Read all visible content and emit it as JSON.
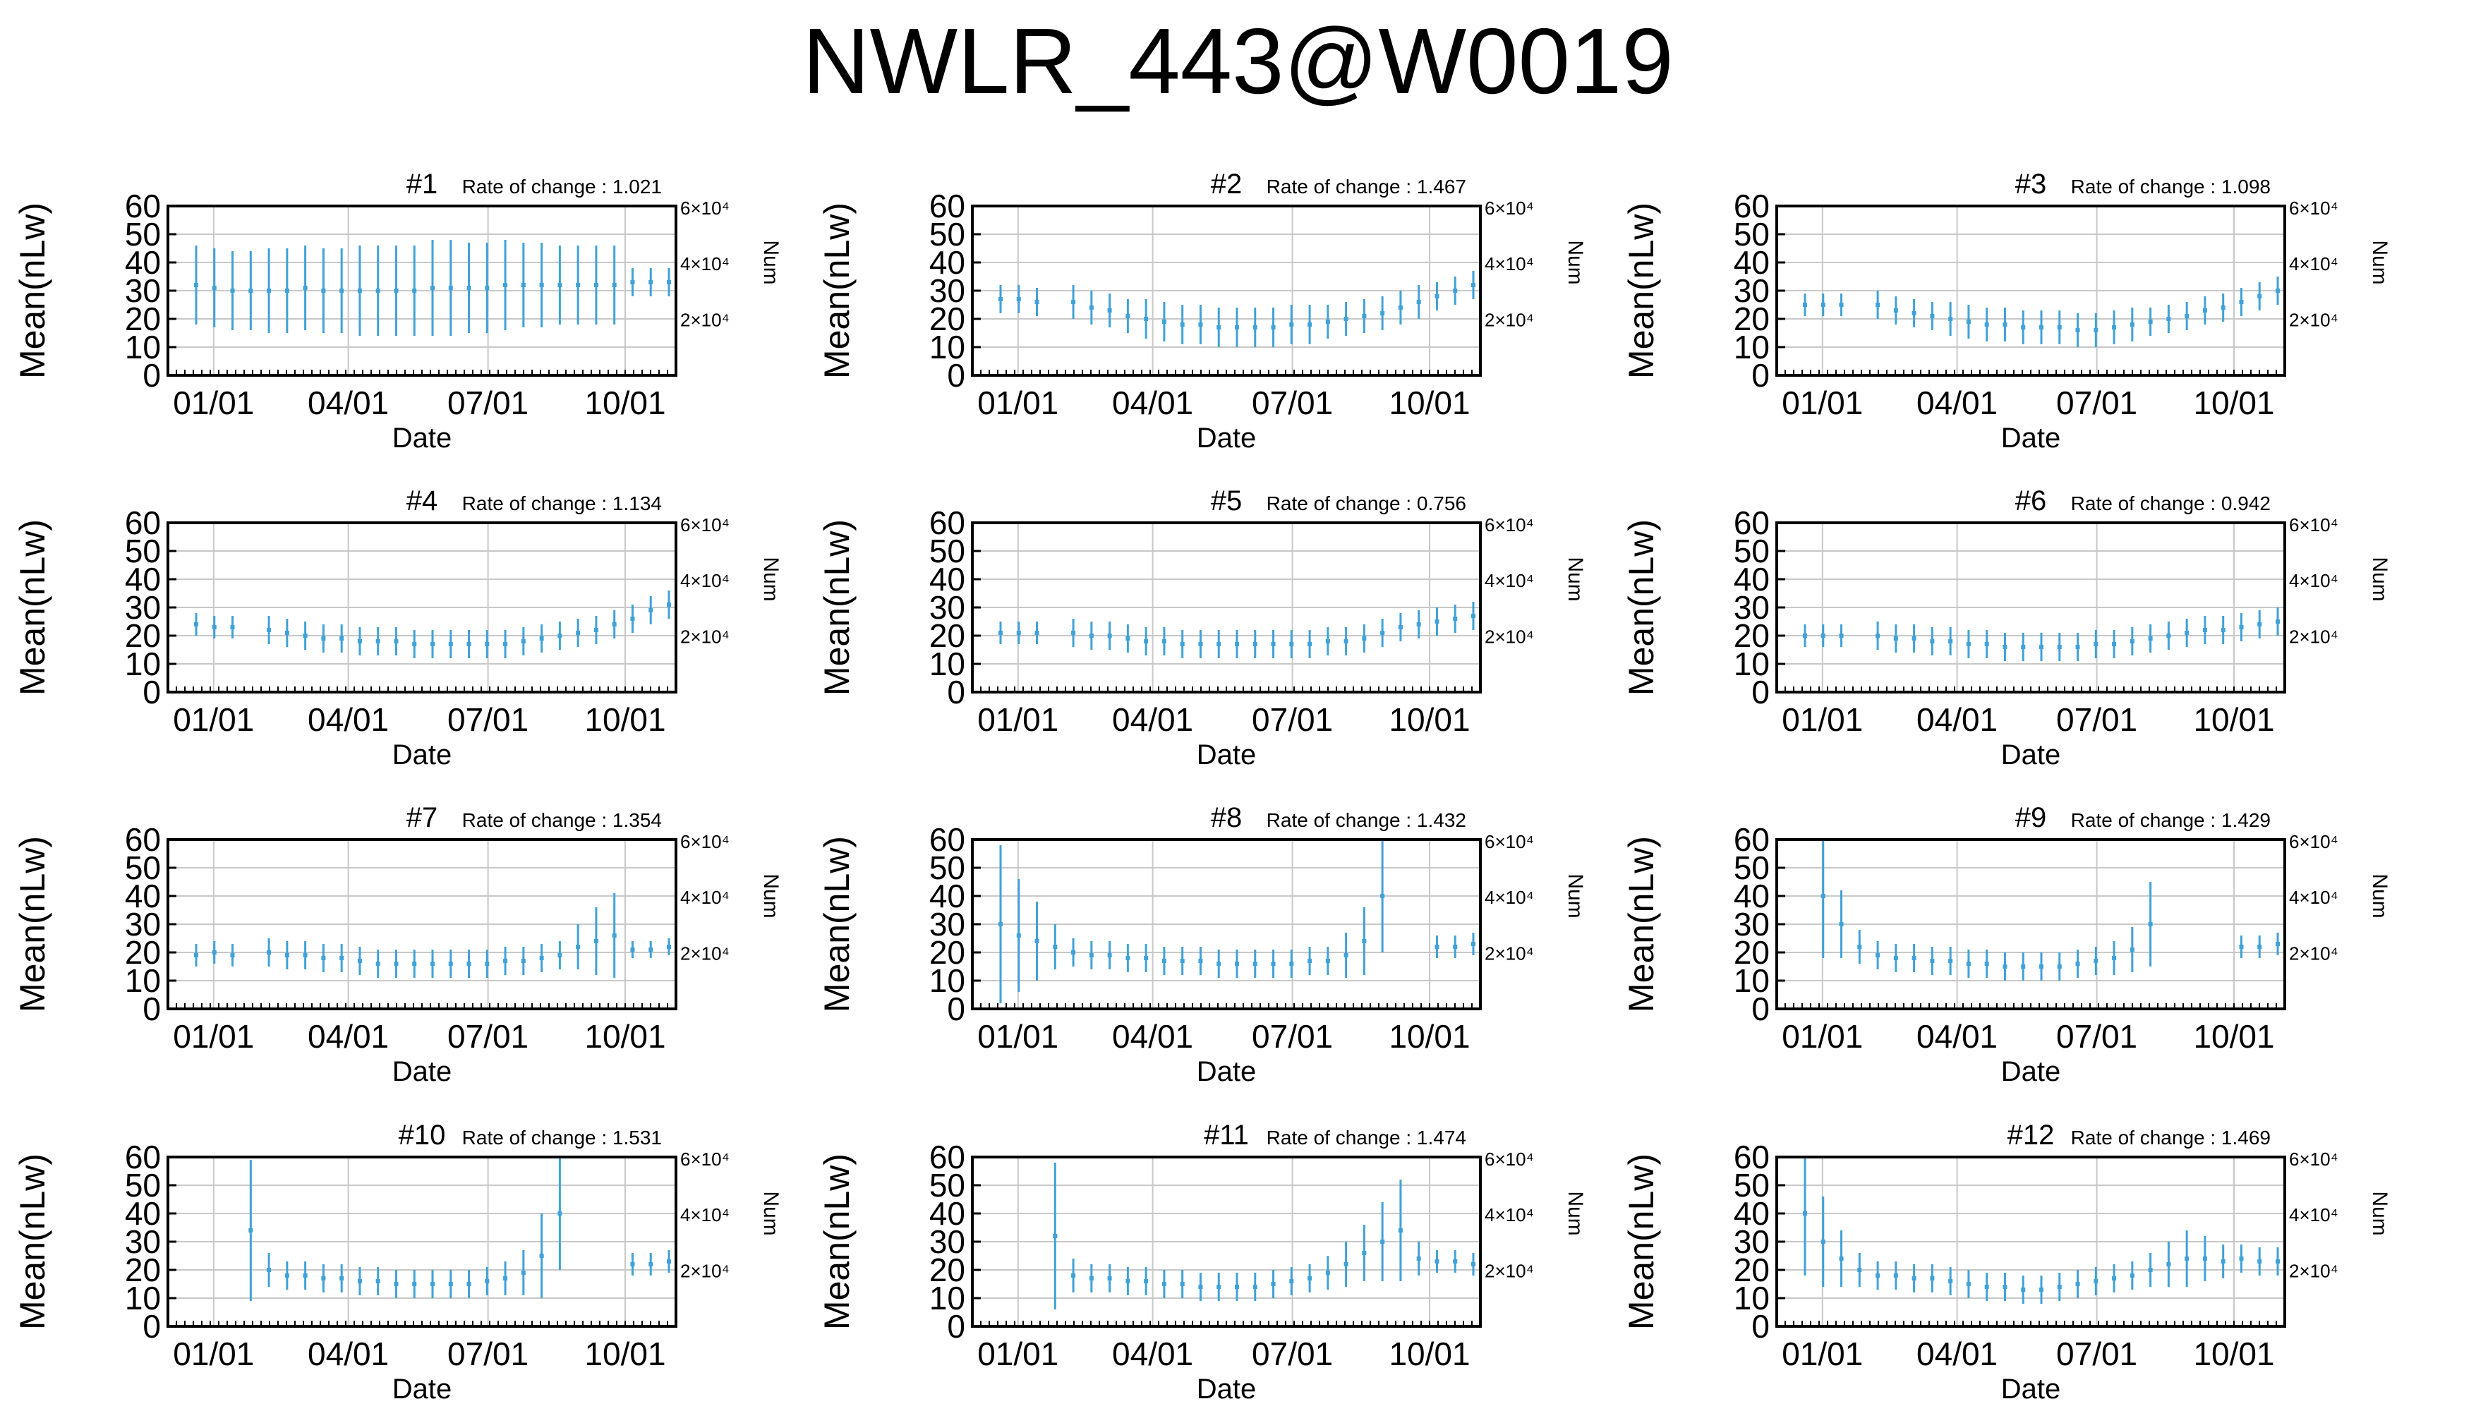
{
  "figure": {
    "title": "NWLR_443@W0019"
  },
  "chart_data": [
    {
      "type": "line",
      "title": "#1",
      "rate_of_change": "Rate of change : 1.021",
      "ylabel": "Mean(nLw)",
      "xlabel": "Date",
      "y2label": "Num",
      "ylim": [
        0,
        60
      ],
      "yticks": [
        0,
        10,
        20,
        30,
        40,
        50,
        60
      ],
      "xticks": [
        "01/01",
        "04/01",
        "07/01",
        "10/01"
      ],
      "y2ticks": [
        "2×10⁴",
        "4×10⁴",
        "6×10⁴"
      ],
      "grid": true,
      "series": [
        {
          "values": [
            32,
            31,
            30,
            30,
            30,
            30,
            31,
            30,
            30,
            30,
            30,
            30,
            30,
            31,
            31,
            31,
            31,
            32,
            32,
            32,
            32,
            32,
            32,
            32,
            33,
            33,
            33
          ],
          "errors": [
            14,
            14,
            14,
            14,
            15,
            15,
            15,
            15,
            15,
            16,
            16,
            16,
            16,
            17,
            17,
            16,
            16,
            16,
            15,
            15,
            14,
            14,
            14,
            14,
            5,
            5,
            5
          ]
        }
      ]
    },
    {
      "type": "line",
      "title": "#2",
      "rate_of_change": "Rate of change : 1.467",
      "ylabel": "Mean(nLw)",
      "xlabel": "Date",
      "y2label": "Num",
      "ylim": [
        0,
        60
      ],
      "yticks": [
        0,
        10,
        20,
        30,
        40,
        50,
        60
      ],
      "xticks": [
        "01/01",
        "04/01",
        "07/01",
        "10/01"
      ],
      "y2ticks": [
        "2×10⁴",
        "4×10⁴",
        "6×10⁴"
      ],
      "grid": true,
      "series": [
        {
          "values": [
            27,
            27,
            26,
            null,
            26,
            24,
            23,
            21,
            20,
            19,
            18,
            18,
            17,
            17,
            17,
            17,
            18,
            18,
            19,
            20,
            21,
            22,
            24,
            26,
            28,
            30,
            32
          ],
          "errors": [
            5,
            5,
            5,
            null,
            6,
            6,
            6,
            6,
            7,
            7,
            7,
            7,
            7,
            7,
            7,
            7,
            7,
            7,
            6,
            6,
            6,
            6,
            6,
            6,
            5,
            5,
            5
          ]
        }
      ]
    },
    {
      "type": "line",
      "title": "#3",
      "rate_of_change": "Rate of change : 1.098",
      "ylabel": "Mean(nLw)",
      "xlabel": "Date",
      "y2label": "Num",
      "ylim": [
        0,
        60
      ],
      "yticks": [
        0,
        10,
        20,
        30,
        40,
        50,
        60
      ],
      "xticks": [
        "01/01",
        "04/01",
        "07/01",
        "10/01"
      ],
      "y2ticks": [
        "2×10⁴",
        "4×10⁴",
        "6×10⁴"
      ],
      "grid": true,
      "series": [
        {
          "values": [
            25,
            25,
            25,
            null,
            25,
            23,
            22,
            21,
            20,
            19,
            18,
            18,
            17,
            17,
            17,
            16,
            16,
            17,
            18,
            19,
            20,
            21,
            23,
            24,
            26,
            28,
            30
          ],
          "errors": [
            4,
            4,
            4,
            null,
            5,
            5,
            5,
            5,
            6,
            6,
            6,
            6,
            6,
            6,
            6,
            6,
            6,
            6,
            6,
            5,
            5,
            5,
            5,
            5,
            5,
            5,
            5
          ]
        }
      ]
    },
    {
      "type": "line",
      "title": "#4",
      "rate_of_change": "Rate of change : 1.134",
      "ylabel": "Mean(nLw)",
      "xlabel": "Date",
      "y2label": "Num",
      "ylim": [
        0,
        60
      ],
      "yticks": [
        0,
        10,
        20,
        30,
        40,
        50,
        60
      ],
      "xticks": [
        "01/01",
        "04/01",
        "07/01",
        "10/01"
      ],
      "y2ticks": [
        "2×10⁴",
        "4×10⁴",
        "6×10⁴"
      ],
      "grid": true,
      "series": [
        {
          "values": [
            24,
            23,
            23,
            null,
            22,
            21,
            20,
            19,
            19,
            18,
            18,
            18,
            17,
            17,
            17,
            17,
            17,
            17,
            18,
            19,
            20,
            21,
            22,
            24,
            26,
            29,
            31
          ],
          "errors": [
            4,
            4,
            4,
            null,
            5,
            5,
            5,
            5,
            5,
            5,
            5,
            5,
            5,
            5,
            5,
            5,
            5,
            5,
            5,
            5,
            5,
            5,
            5,
            5,
            5,
            5,
            5
          ]
        }
      ]
    },
    {
      "type": "line",
      "title": "#5",
      "rate_of_change": "Rate of change : 0.756",
      "ylabel": "Mean(nLw)",
      "xlabel": "Date",
      "y2label": "Num",
      "ylim": [
        0,
        60
      ],
      "yticks": [
        0,
        10,
        20,
        30,
        40,
        50,
        60
      ],
      "xticks": [
        "01/01",
        "04/01",
        "07/01",
        "10/01"
      ],
      "y2ticks": [
        "2×10⁴",
        "4×10⁴",
        "6×10⁴"
      ],
      "grid": true,
      "series": [
        {
          "values": [
            21,
            21,
            21,
            null,
            21,
            20,
            20,
            19,
            18,
            18,
            17,
            17,
            17,
            17,
            17,
            17,
            17,
            17,
            18,
            18,
            19,
            21,
            23,
            24,
            25,
            26,
            27
          ],
          "errors": [
            4,
            4,
            4,
            null,
            5,
            5,
            5,
            5,
            5,
            5,
            5,
            5,
            5,
            5,
            5,
            5,
            5,
            5,
            5,
            5,
            5,
            5,
            5,
            5,
            5,
            5,
            5
          ]
        }
      ]
    },
    {
      "type": "line",
      "title": "#6",
      "rate_of_change": "Rate of change : 0.942",
      "ylabel": "Mean(nLw)",
      "xlabel": "Date",
      "y2label": "Num",
      "ylim": [
        0,
        60
      ],
      "yticks": [
        0,
        10,
        20,
        30,
        40,
        50,
        60
      ],
      "xticks": [
        "01/01",
        "04/01",
        "07/01",
        "10/01"
      ],
      "y2ticks": [
        "2×10⁴",
        "4×10⁴",
        "6×10⁴"
      ],
      "grid": true,
      "series": [
        {
          "values": [
            20,
            20,
            20,
            null,
            20,
            19,
            19,
            18,
            18,
            17,
            17,
            16,
            16,
            16,
            16,
            16,
            17,
            17,
            18,
            19,
            20,
            21,
            22,
            22,
            23,
            24,
            25
          ],
          "errors": [
            4,
            4,
            4,
            null,
            5,
            5,
            5,
            5,
            5,
            5,
            5,
            5,
            5,
            5,
            5,
            5,
            5,
            5,
            5,
            5,
            5,
            5,
            5,
            5,
            5,
            5,
            5
          ]
        }
      ]
    },
    {
      "type": "line",
      "title": "#7",
      "rate_of_change": "Rate of change : 1.354",
      "ylabel": "Mean(nLw)",
      "xlabel": "Date",
      "y2label": "Num",
      "ylim": [
        0,
        60
      ],
      "yticks": [
        0,
        10,
        20,
        30,
        40,
        50,
        60
      ],
      "xticks": [
        "01/01",
        "04/01",
        "07/01",
        "10/01"
      ],
      "y2ticks": [
        "2×10⁴",
        "4×10⁴",
        "6×10⁴"
      ],
      "grid": true,
      "series": [
        {
          "values": [
            19,
            20,
            19,
            null,
            20,
            19,
            19,
            18,
            18,
            17,
            16,
            16,
            16,
            16,
            16,
            16,
            16,
            17,
            17,
            18,
            19,
            22,
            24,
            26,
            21,
            21,
            22
          ],
          "errors": [
            4,
            4,
            4,
            null,
            5,
            5,
            5,
            5,
            5,
            5,
            5,
            5,
            5,
            5,
            5,
            5,
            5,
            5,
            5,
            5,
            5,
            8,
            12,
            15,
            3,
            3,
            3
          ]
        }
      ]
    },
    {
      "type": "line",
      "title": "#8",
      "rate_of_change": "Rate of change : 1.432",
      "ylabel": "Mean(nLw)",
      "xlabel": "Date",
      "y2label": "Num",
      "ylim": [
        0,
        60
      ],
      "yticks": [
        0,
        10,
        20,
        30,
        40,
        50,
        60
      ],
      "xticks": [
        "01/01",
        "04/01",
        "07/01",
        "10/01"
      ],
      "y2ticks": [
        "2×10⁴",
        "4×10⁴",
        "6×10⁴"
      ],
      "grid": true,
      "series": [
        {
          "values": [
            30,
            26,
            24,
            22,
            20,
            19,
            19,
            18,
            18,
            17,
            17,
            17,
            16,
            16,
            16,
            16,
            16,
            17,
            17,
            19,
            24,
            40,
            null,
            null,
            22,
            22,
            23
          ],
          "errors": [
            28,
            20,
            14,
            8,
            5,
            5,
            5,
            5,
            5,
            5,
            5,
            5,
            5,
            5,
            5,
            5,
            5,
            5,
            5,
            8,
            12,
            20,
            null,
            null,
            4,
            4,
            4
          ]
        }
      ]
    },
    {
      "type": "line",
      "title": "#9",
      "rate_of_change": "Rate of change : 1.429",
      "ylabel": "Mean(nLw)",
      "xlabel": "Date",
      "y2label": "Num",
      "ylim": [
        0,
        60
      ],
      "yticks": [
        0,
        10,
        20,
        30,
        40,
        50,
        60
      ],
      "xticks": [
        "01/01",
        "04/01",
        "07/01",
        "10/01"
      ],
      "y2ticks": [
        "2×10⁴",
        "4×10⁴",
        "6×10⁴"
      ],
      "grid": true,
      "series": [
        {
          "values": [
            null,
            40,
            30,
            22,
            19,
            18,
            18,
            17,
            17,
            16,
            16,
            15,
            15,
            15,
            15,
            16,
            17,
            18,
            21,
            30,
            null,
            null,
            null,
            null,
            22,
            22,
            23
          ],
          "errors": [
            null,
            22,
            12,
            6,
            5,
            5,
            5,
            5,
            5,
            5,
            5,
            5,
            5,
            5,
            5,
            5,
            5,
            6,
            8,
            15,
            null,
            null,
            null,
            null,
            4,
            4,
            4
          ]
        }
      ]
    },
    {
      "type": "line",
      "title": "#10",
      "rate_of_change": "Rate of change : 1.531",
      "ylabel": "Mean(nLw)",
      "xlabel": "Date",
      "y2label": "Num",
      "ylim": [
        0,
        60
      ],
      "yticks": [
        0,
        10,
        20,
        30,
        40,
        50,
        60
      ],
      "xticks": [
        "01/01",
        "04/01",
        "07/01",
        "10/01"
      ],
      "y2ticks": [
        "2×10⁴",
        "4×10⁴",
        "6×10⁴"
      ],
      "grid": true,
      "series": [
        {
          "values": [
            null,
            null,
            null,
            34,
            20,
            18,
            18,
            17,
            17,
            16,
            16,
            15,
            15,
            15,
            15,
            15,
            16,
            17,
            19,
            25,
            40,
            null,
            null,
            null,
            22,
            22,
            23
          ],
          "errors": [
            null,
            null,
            null,
            25,
            6,
            5,
            5,
            5,
            5,
            5,
            5,
            5,
            5,
            5,
            5,
            5,
            5,
            6,
            8,
            15,
            20,
            null,
            null,
            null,
            4,
            4,
            4
          ]
        }
      ]
    },
    {
      "type": "line",
      "title": "#11",
      "rate_of_change": "Rate of change : 1.474",
      "ylabel": "Mean(nLw)",
      "xlabel": "Date",
      "y2label": "Num",
      "ylim": [
        0,
        60
      ],
      "yticks": [
        0,
        10,
        20,
        30,
        40,
        50,
        60
      ],
      "xticks": [
        "01/01",
        "04/01",
        "07/01",
        "10/01"
      ],
      "y2ticks": [
        "2×10⁴",
        "4×10⁴",
        "6×10⁴"
      ],
      "grid": true,
      "series": [
        {
          "values": [
            null,
            null,
            null,
            32,
            18,
            17,
            17,
            16,
            16,
            15,
            15,
            14,
            14,
            14,
            14,
            15,
            16,
            17,
            19,
            22,
            26,
            30,
            34,
            24,
            23,
            23,
            22
          ],
          "errors": [
            null,
            null,
            null,
            26,
            6,
            5,
            5,
            5,
            5,
            5,
            5,
            5,
            5,
            5,
            5,
            5,
            5,
            5,
            6,
            8,
            10,
            14,
            18,
            6,
            4,
            4,
            4
          ]
        }
      ]
    },
    {
      "type": "line",
      "title": "#12",
      "rate_of_change": "Rate of change : 1.469",
      "ylabel": "Mean(nLw)",
      "xlabel": "Date",
      "y2label": "Num",
      "ylim": [
        0,
        60
      ],
      "yticks": [
        0,
        10,
        20,
        30,
        40,
        50,
        60
      ],
      "xticks": [
        "01/01",
        "04/01",
        "07/01",
        "10/01"
      ],
      "y2ticks": [
        "2×10⁴",
        "4×10⁴",
        "6×10⁴"
      ],
      "grid": true,
      "series": [
        {
          "values": [
            40,
            30,
            24,
            20,
            18,
            18,
            17,
            17,
            16,
            15,
            14,
            14,
            13,
            13,
            14,
            15,
            16,
            17,
            18,
            20,
            22,
            24,
            24,
            23,
            24,
            23,
            23
          ],
          "errors": [
            22,
            16,
            10,
            6,
            5,
            5,
            5,
            5,
            5,
            5,
            5,
            5,
            5,
            5,
            5,
            5,
            5,
            5,
            5,
            6,
            8,
            10,
            8,
            6,
            5,
            5,
            5
          ]
        }
      ]
    }
  ]
}
